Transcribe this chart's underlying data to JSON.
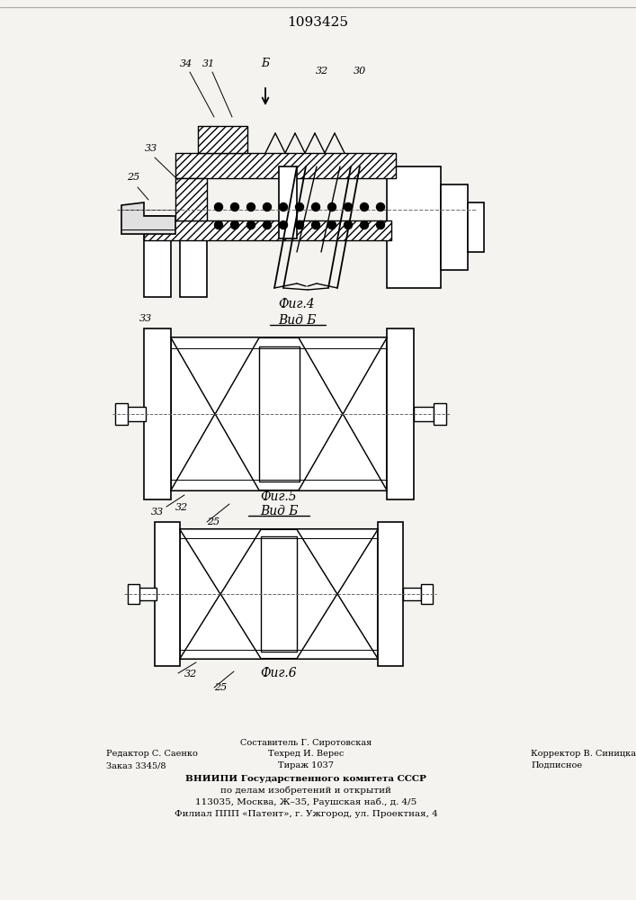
{
  "title": "1093425",
  "bg_color": "#f5f3f0",
  "fig4_caption": "Фиг.4",
  "fig5_caption": "Фиг.5",
  "fig6_caption": "Фиг.6",
  "vid_b": "Вид Б"
}
